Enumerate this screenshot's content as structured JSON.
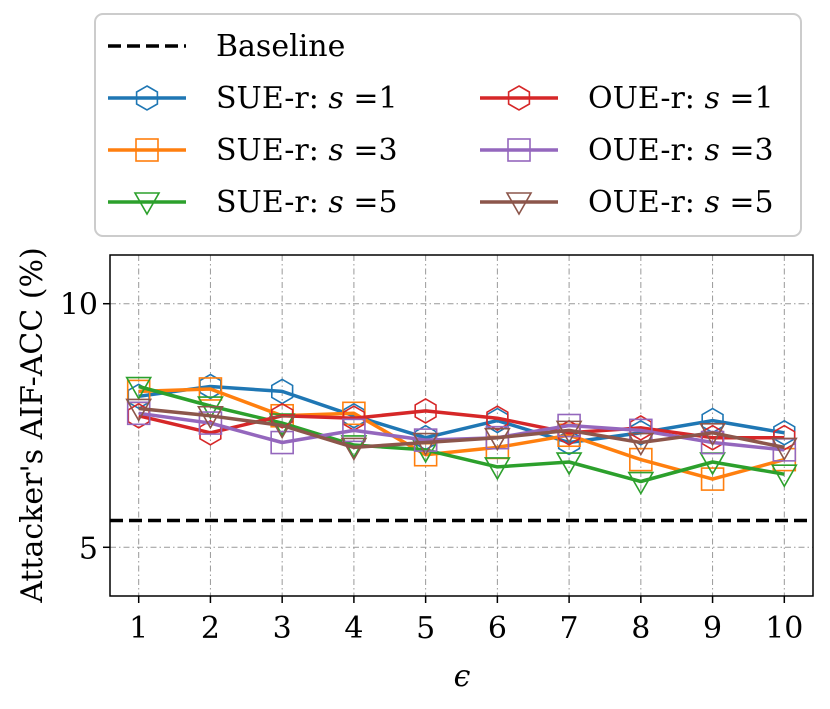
{
  "chart_data": {
    "type": "line",
    "xlabel": "ϵ",
    "ylabel": "Attacker's AIF-ACC (%)",
    "x": [
      1,
      2,
      3,
      4,
      5,
      6,
      7,
      8,
      9,
      10
    ],
    "xlim": [
      0.6,
      10.4
    ],
    "ylim": [
      4.0,
      11.0
    ],
    "yticks": [
      5,
      10
    ],
    "grid": true,
    "legend": {
      "placement": "top",
      "columns": 2
    },
    "baseline": {
      "name": "Baseline",
      "value": 5.55,
      "color": "#000000"
    },
    "series": [
      {
        "name": "SUE-r: s =1",
        "label_prefix": "SUE-r: ",
        "label_value": "1",
        "color": "#1f77b4",
        "marker": "hexagon",
        "values": [
          8.1,
          8.3,
          8.2,
          7.7,
          7.25,
          7.6,
          7.15,
          7.35,
          7.6,
          7.35
        ]
      },
      {
        "name": "SUE-r: s =3",
        "label_prefix": "SUE-r: ",
        "label_value": "3",
        "color": "#ff7f0e",
        "marker": "square",
        "values": [
          8.2,
          8.25,
          7.7,
          7.75,
          6.9,
          7.05,
          7.3,
          6.8,
          6.4,
          6.8
        ]
      },
      {
        "name": "SUE-r: s =5",
        "label_prefix": "SUE-r: ",
        "label_value": "5",
        "color": "#2ca02c",
        "marker": "triangle_down",
        "values": [
          8.3,
          7.9,
          7.55,
          7.1,
          7.0,
          6.65,
          6.75,
          6.35,
          6.75,
          6.5
        ]
      },
      {
        "name": "OUE-r: s =1",
        "label_prefix": "OUE-r: ",
        "label_value": "1",
        "color": "#d62728",
        "marker": "hexagon",
        "values": [
          7.7,
          7.35,
          7.7,
          7.65,
          7.8,
          7.65,
          7.35,
          7.45,
          7.25,
          7.25
        ]
      },
      {
        "name": "OUE-r: s =3",
        "label_prefix": "OUE-r: ",
        "label_value": "3",
        "color": "#9467bd",
        "marker": "square",
        "values": [
          7.75,
          7.55,
          7.15,
          7.4,
          7.2,
          7.25,
          7.5,
          7.4,
          7.15,
          7.0
        ]
      },
      {
        "name": "OUE-r: s =5",
        "label_prefix": "OUE-r: ",
        "label_value": "5",
        "color": "#8c564b",
        "marker": "triangle_down",
        "values": [
          7.85,
          7.7,
          7.5,
          7.05,
          7.15,
          7.25,
          7.4,
          7.15,
          7.35,
          7.05
        ]
      }
    ]
  }
}
